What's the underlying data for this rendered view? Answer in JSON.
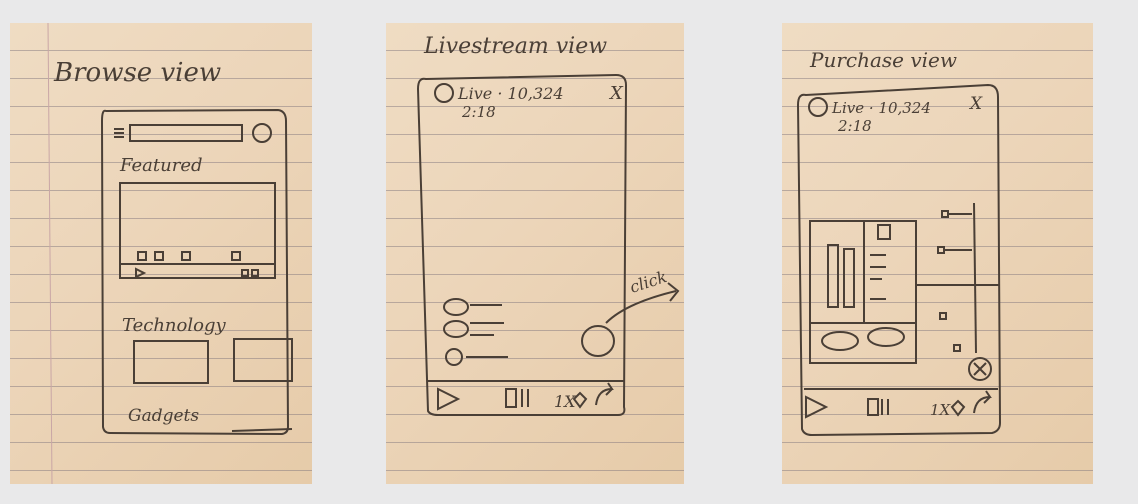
{
  "sketches": [
    {
      "title": "Browse view",
      "sections": [
        "Featured",
        "Technology",
        "Gadgets"
      ]
    },
    {
      "title": "Livestream view",
      "status": "Live · 10,324",
      "time": "2:18",
      "close": "X",
      "speed": "1X",
      "annotation": "click"
    },
    {
      "title": "Purchase view",
      "status": "Live · 10,324",
      "time": "2:18",
      "close": "X",
      "speed": "1X"
    }
  ],
  "colors": {
    "pencil": "#4a3f36",
    "paper": "#ecd5b9",
    "background": "#e9e9ea"
  }
}
